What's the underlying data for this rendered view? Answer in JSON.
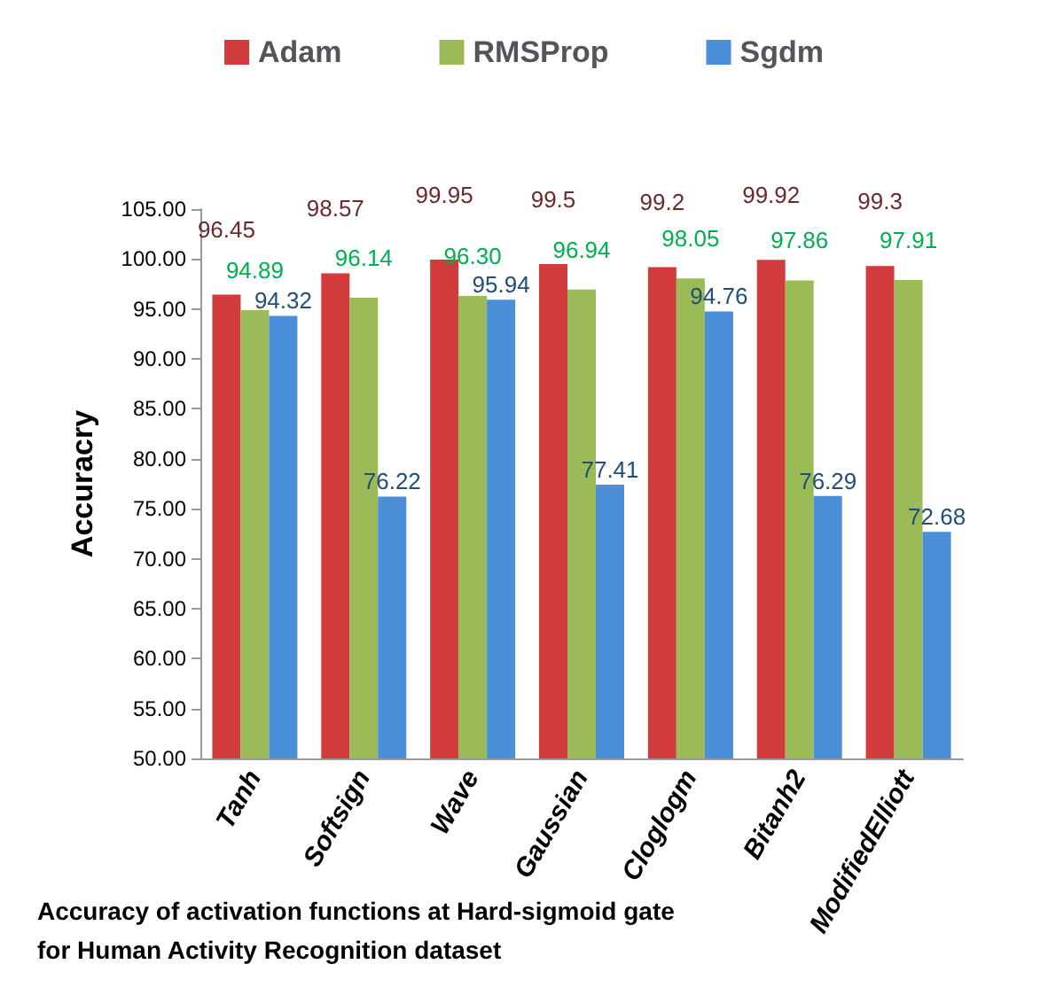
{
  "chart_data": {
    "type": "bar",
    "title": "Accuracy of activation functions at Hard-sigmoid gate\nfor Human Activity Recognition dataset",
    "ylabel": "Accuracry",
    "categories": [
      "Tanh",
      "Softsign",
      "Wave",
      "Gaussian",
      "Cloglogm",
      "Bitanh2",
      "ModifiedElliott"
    ],
    "series": [
      {
        "name": "Adam",
        "color": "#d13b3b",
        "values": [
          96.45,
          98.57,
          99.95,
          99.5,
          99.2,
          99.92,
          99.3
        ],
        "value_labels": [
          "96.45",
          "98.57",
          "99.95",
          "99.5",
          "99.2",
          "99.92",
          "99.3"
        ]
      },
      {
        "name": "RMSProp",
        "color": "#9bbb59",
        "values": [
          94.89,
          96.14,
          96.3,
          96.94,
          98.05,
          97.86,
          97.91
        ],
        "value_labels": [
          "94.89",
          "96.14",
          "96.30",
          "96.94",
          "98.05",
          "97.86",
          "97.91"
        ]
      },
      {
        "name": "Sgdm",
        "color": "#4a8fd8",
        "values": [
          94.32,
          76.22,
          95.94,
          77.41,
          94.76,
          76.29,
          72.68
        ],
        "value_labels": [
          "94.32",
          "76.22",
          "95.94",
          "77.41",
          "94.76",
          "76.29",
          "72.68"
        ]
      }
    ],
    "ylim": [
      50,
      105
    ],
    "yticks": [
      {
        "value": 50,
        "label": "50.00"
      },
      {
        "value": 55,
        "label": "55.00"
      },
      {
        "value": 60,
        "label": "60.00"
      },
      {
        "value": 65,
        "label": "65.00"
      },
      {
        "value": 70,
        "label": "70.00"
      },
      {
        "value": 75,
        "label": "75.00"
      },
      {
        "value": 80,
        "label": "80.00"
      },
      {
        "value": 85,
        "label": "85.00"
      },
      {
        "value": 90,
        "label": "90.00"
      },
      {
        "value": 95,
        "label": "95.00"
      },
      {
        "value": 100,
        "label": "100.00"
      },
      {
        "value": 105,
        "label": "105.00"
      }
    ],
    "legend": "top",
    "grid": false
  }
}
